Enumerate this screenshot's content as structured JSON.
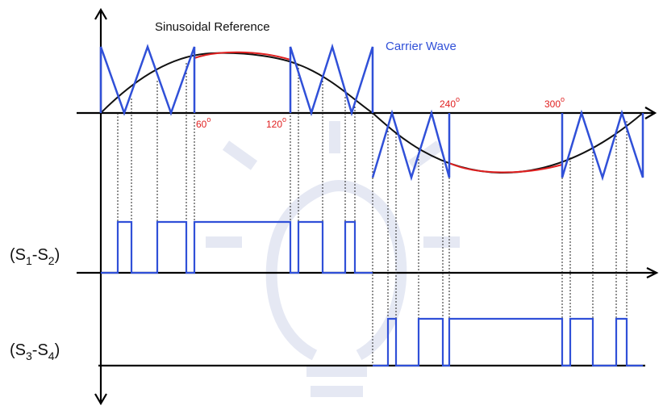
{
  "labels": {
    "sinusoidal_reference": "Sinusoidal  Reference",
    "carrier_wave": "Carrier Wave",
    "angles": [
      "60",
      "120",
      "240",
      "300"
    ],
    "degree_mark": "o",
    "switch_1": {
      "open": "(S",
      "a": "1",
      "dash": "-S",
      "b": "2",
      "close": ")"
    },
    "switch_2": {
      "open": "(S",
      "a": "3",
      "dash": "-S",
      "b": "4",
      "close": ")"
    }
  },
  "colors": {
    "reference": "#111111",
    "reference_negative_half": "#e02020",
    "carrier": "#3050d8",
    "pulse": "#3050d8",
    "axis": "#000000",
    "angle_label": "#e02020",
    "watermark": "#c8cfe6"
  }
}
